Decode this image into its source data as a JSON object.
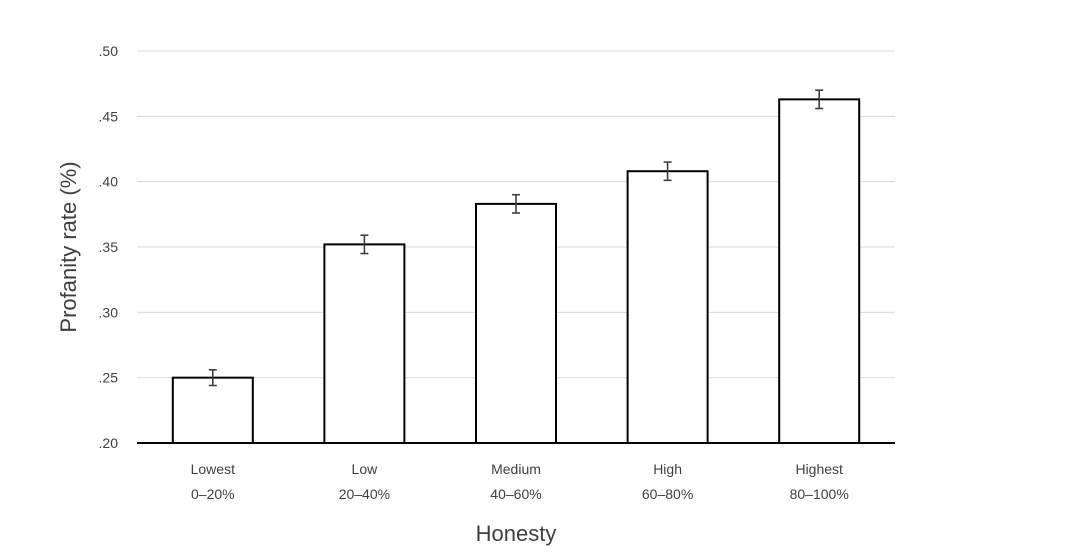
{
  "chart_data": {
    "type": "bar",
    "xlabel": "Honesty",
    "ylabel": "Profanity rate (%)",
    "ylim": [
      0.2,
      0.5
    ],
    "yticks": [
      0.2,
      0.25,
      0.3,
      0.35,
      0.4,
      0.45,
      0.5
    ],
    "ytick_labels": [
      ".20",
      ".25",
      ".30",
      ".35",
      ".40",
      ".45",
      ".50"
    ],
    "grid": true,
    "categories": [
      {
        "line1": "Lowest",
        "line2": "0–20%"
      },
      {
        "line1": "Low",
        "line2": "20–40%"
      },
      {
        "line1": "Medium",
        "line2": "40–60%"
      },
      {
        "line1": "High",
        "line2": "60–80%"
      },
      {
        "line1": "Highest",
        "line2": "80–100%"
      }
    ],
    "values": [
      0.25,
      0.352,
      0.383,
      0.408,
      0.463
    ],
    "errors": [
      0.006,
      0.007,
      0.007,
      0.007,
      0.007
    ],
    "colors": {
      "bar_fill": "#ffffff",
      "bar_stroke": "#000000",
      "grid": "#d9d9d9",
      "text": "#404040"
    }
  }
}
